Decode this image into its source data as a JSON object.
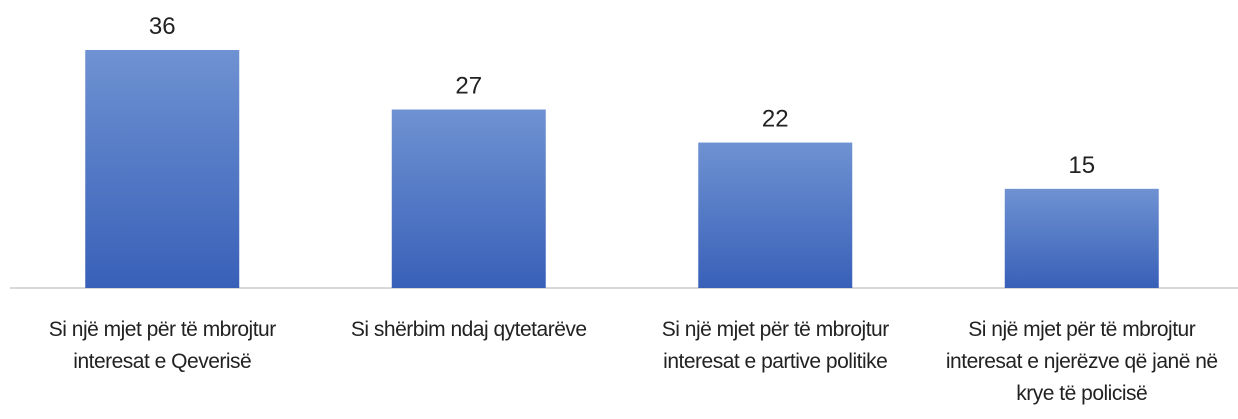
{
  "chart_data": {
    "type": "bar",
    "categories": [
      "Si një mjet për të mbrojtur interesat e Qeverisë",
      "Si shërbim ndaj qytetarëve",
      "Si një mjet për të mbrojtur interesat e partive politike",
      "Si një mjet për të mbrojtur interesat e njerëzve që janë në krye të policisë"
    ],
    "values": [
      36,
      27,
      22,
      15
    ],
    "color": "#4a72c4"
  }
}
